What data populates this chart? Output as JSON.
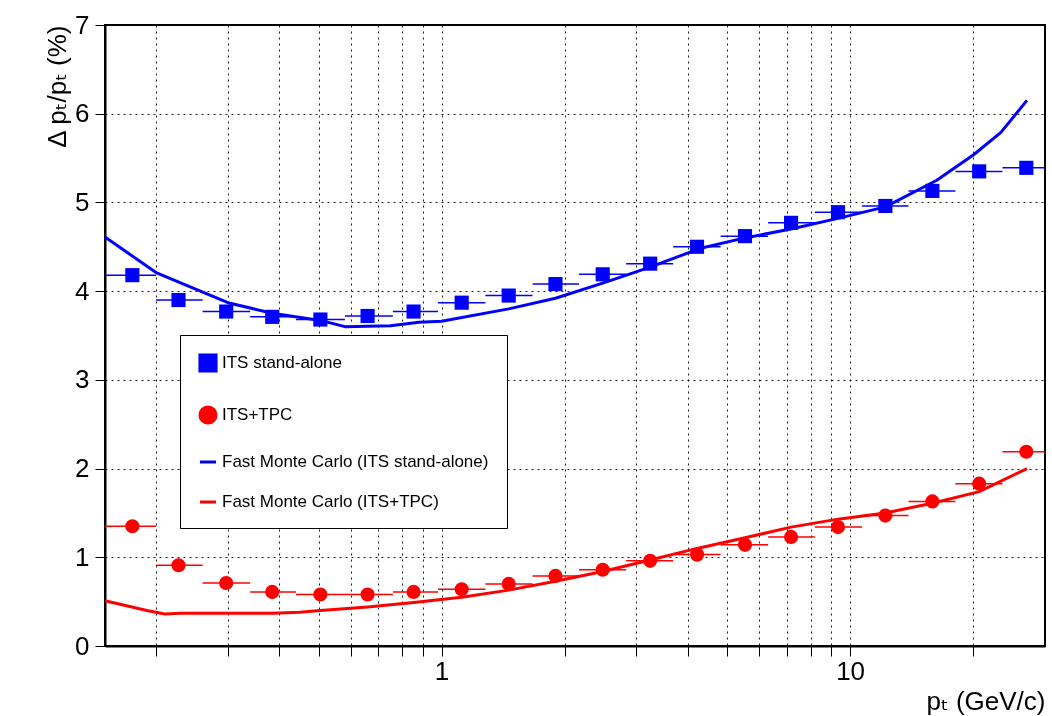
{
  "chart_data": {
    "type": "scatter",
    "xlabel": "pₜ (GeV/c)",
    "ylabel": "Δ pₜ/pₜ (%)",
    "log": "x",
    "xlim": [
      0.15,
      30
    ],
    "xticks": [
      {
        "value": 0.2,
        "label": null
      },
      {
        "value": 0.3,
        "label": null
      },
      {
        "value": 0.4,
        "label": null
      },
      {
        "value": 0.5,
        "label": null
      },
      {
        "value": 0.6,
        "label": null
      },
      {
        "value": 0.7,
        "label": null
      },
      {
        "value": 0.8,
        "label": null
      },
      {
        "value": 0.9,
        "label": null
      },
      1,
      {
        "value": 2,
        "label": null
      },
      {
        "value": 3,
        "label": null
      },
      {
        "value": 4,
        "label": null
      },
      {
        "value": 5,
        "label": null
      },
      {
        "value": 6,
        "label": null
      },
      {
        "value": 7,
        "label": null
      },
      {
        "value": 8,
        "label": null
      },
      {
        "value": 9,
        "label": null
      },
      10,
      {
        "value": 20,
        "label": null
      }
    ],
    "ylim": [
      0,
      7
    ],
    "yticks": [
      0,
      1,
      2,
      3,
      4,
      5,
      6,
      7
    ],
    "grid": true,
    "legend": "left",
    "series": [
      {
        "name": "ITS stand-alone",
        "marker": "square",
        "color": "#0000ff",
        "x": [
          0.175,
          0.227,
          0.297,
          0.385,
          0.505,
          0.659,
          0.854,
          1.12,
          1.46,
          1.9,
          2.48,
          3.24,
          4.22,
          5.53,
          7.17,
          9.34,
          12.2,
          15.9,
          20.7,
          27.0
        ],
        "values": [
          4.18,
          3.9,
          3.77,
          3.71,
          3.68,
          3.72,
          3.77,
          3.87,
          3.95,
          4.08,
          4.19,
          4.31,
          4.5,
          4.62,
          4.77,
          4.89,
          4.96,
          5.13,
          5.35,
          5.39
        ],
        "xerrors": [
          [
            0.15,
            0.2
          ],
          [
            0.2,
            0.26
          ],
          [
            0.26,
            0.34
          ],
          [
            0.34,
            0.44
          ],
          [
            0.44,
            0.58
          ],
          [
            0.58,
            0.76
          ],
          [
            0.76,
            0.98
          ],
          [
            0.98,
            1.28
          ],
          [
            1.28,
            1.67
          ],
          [
            1.67,
            2.17
          ],
          [
            2.17,
            2.83
          ],
          [
            2.83,
            3.69
          ],
          [
            3.69,
            4.82
          ],
          [
            4.82,
            6.3
          ],
          [
            6.3,
            8.2
          ],
          [
            8.2,
            10.7
          ],
          [
            10.7,
            13.9
          ],
          [
            13.9,
            18.1
          ],
          [
            18.1,
            23.6
          ],
          [
            23.6,
            30
          ]
        ]
      },
      {
        "name": "ITS+TPC",
        "marker": "circle",
        "color": "#ff0000",
        "x": [
          0.175,
          0.227,
          0.297,
          0.385,
          0.505,
          0.659,
          0.854,
          1.12,
          1.46,
          1.9,
          2.48,
          3.24,
          4.22,
          5.53,
          7.17,
          9.34,
          12.2,
          15.9,
          20.7,
          27.0
        ],
        "values": [
          1.35,
          0.91,
          0.71,
          0.61,
          0.58,
          0.58,
          0.61,
          0.64,
          0.7,
          0.79,
          0.86,
          0.96,
          1.03,
          1.14,
          1.23,
          1.34,
          1.47,
          1.63,
          1.83,
          2.19
        ],
        "xerrors": [
          [
            0.15,
            0.2
          ],
          [
            0.2,
            0.26
          ],
          [
            0.26,
            0.34
          ],
          [
            0.34,
            0.44
          ],
          [
            0.44,
            0.58
          ],
          [
            0.58,
            0.76
          ],
          [
            0.76,
            0.98
          ],
          [
            0.98,
            1.28
          ],
          [
            1.28,
            1.67
          ],
          [
            1.67,
            2.17
          ],
          [
            2.17,
            2.83
          ],
          [
            2.83,
            3.69
          ],
          [
            3.69,
            4.82
          ],
          [
            4.82,
            6.3
          ],
          [
            6.3,
            8.2
          ],
          [
            8.2,
            10.7
          ],
          [
            10.7,
            13.9
          ],
          [
            13.9,
            18.1
          ],
          [
            18.1,
            23.6
          ],
          [
            23.6,
            30
          ]
        ]
      },
      {
        "name": "Fast Monte Carlo (ITS stand-alone)",
        "type": "line",
        "color": "#0000ff",
        "x": [
          0.15,
          0.2,
          0.3,
          0.385,
          0.505,
          0.58,
          0.75,
          0.88,
          1.0,
          1.46,
          1.9,
          2.48,
          3.24,
          4.28,
          5.53,
          7.17,
          9.34,
          12.2,
          16.3,
          20.1,
          23.4,
          27.1
        ],
        "values": [
          4.61,
          4.21,
          3.87,
          3.75,
          3.67,
          3.6,
          3.61,
          3.65,
          3.66,
          3.8,
          3.92,
          4.09,
          4.27,
          4.48,
          4.6,
          4.7,
          4.82,
          4.95,
          5.25,
          5.54,
          5.79,
          6.15
        ]
      },
      {
        "name": "Fast Monte Carlo (ITS+TPC)",
        "type": "line",
        "color": "#ff0000",
        "x": [
          0.15,
          0.19,
          0.21,
          0.23,
          0.385,
          0.45,
          0.505,
          0.659,
          0.854,
          1.12,
          1.46,
          1.9,
          2.48,
          3.24,
          4.22,
          5.53,
          7.17,
          9.34,
          12.2,
          15.9,
          20.7,
          27.1
        ],
        "values": [
          0.51,
          0.4,
          0.36,
          0.37,
          0.37,
          0.38,
          0.4,
          0.44,
          0.49,
          0.55,
          0.63,
          0.73,
          0.84,
          0.97,
          1.1,
          1.22,
          1.34,
          1.43,
          1.5,
          1.61,
          1.74,
          2.0
        ]
      }
    ]
  }
}
